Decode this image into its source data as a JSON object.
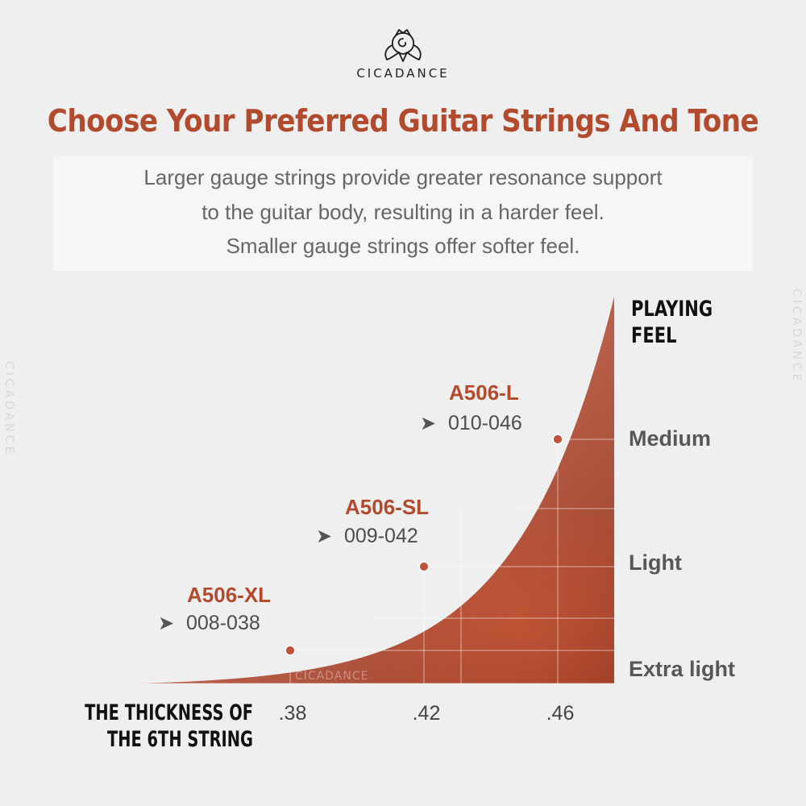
{
  "brand": {
    "name": "CICADANCE",
    "logo_icon": "cicada-icon"
  },
  "headline": "Choose Your Preferred Guitar Strings And Tone",
  "description": {
    "lines": [
      "Larger gauge strings provide greater resonance support",
      "to the guitar body, resulting in a harder feel.",
      "Smaller gauge strings offer softer feel."
    ]
  },
  "watermarks": {
    "side_left": "CICADANCE",
    "side_right": "CICADANCE",
    "chart": "CICADANCE"
  },
  "colors": {
    "accent": "#b24a2e",
    "curve_fill": "#b85e49",
    "curve_fill_dark": "#a1412a",
    "background": "#efefef"
  },
  "chart_data": {
    "type": "area",
    "xlabel": "THE THICKNESS OF THE 6TH STRING",
    "xlabel_lines": [
      "THE THICKNESS OF",
      "THE 6TH STRING"
    ],
    "ylabel": "PLAYING FEEL",
    "ylabel_lines": [
      "PLAYING",
      "FEEL"
    ],
    "x_ticks": [
      {
        "value": 0.38,
        "label": ".38"
      },
      {
        "value": 0.42,
        "label": ".42"
      },
      {
        "value": 0.46,
        "label": ".46"
      }
    ],
    "y_levels": [
      "Extra light",
      "Light",
      "Medium"
    ],
    "points": [
      {
        "name": "A506-XL",
        "gauge": "008-038",
        "x": 0.38,
        "feel": "Extra light"
      },
      {
        "name": "A506-SL",
        "gauge": "009-042",
        "x": 0.42,
        "feel": "Light"
      },
      {
        "name": "A506-L",
        "gauge": "010-046",
        "x": 0.46,
        "feel": "Medium"
      }
    ],
    "pointer_glyph": "➤",
    "grid": true
  }
}
